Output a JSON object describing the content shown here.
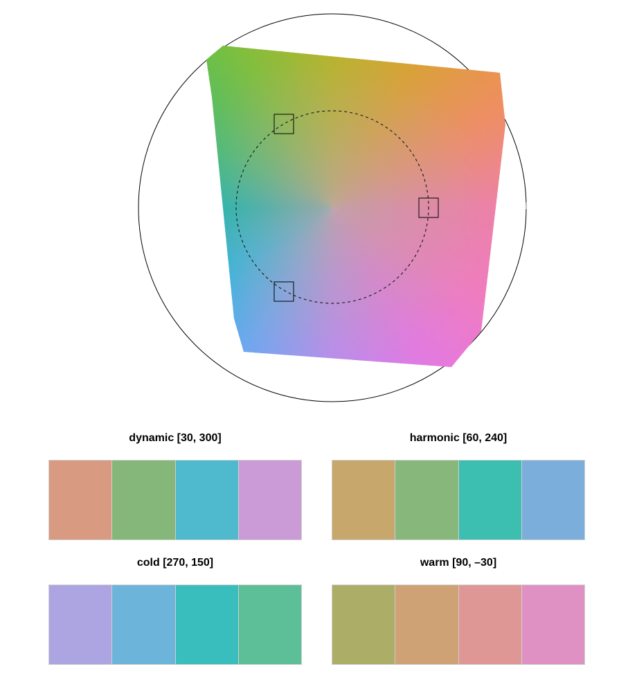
{
  "wheel": {
    "markers": [
      {
        "name": "marker-1"
      },
      {
        "name": "marker-2"
      },
      {
        "name": "marker-3"
      }
    ]
  },
  "palettes": [
    {
      "title": "dynamic [30, 300]",
      "swatches": [
        "#d99a82",
        "#86b77a",
        "#4fbacd",
        "#cb9bd8"
      ]
    },
    {
      "title": "harmonic [60, 240]",
      "swatches": [
        "#c7a76c",
        "#87b77b",
        "#3cbeb0",
        "#7caedb"
      ]
    },
    {
      "title": "cold [270, 150]",
      "swatches": [
        "#ada4e2",
        "#6db4db",
        "#3abebd",
        "#5dbf97"
      ]
    },
    {
      "title": "warm [90, –30]",
      "swatches": [
        "#acae68",
        "#cea274",
        "#df9795",
        "#df91c3"
      ]
    }
  ]
}
